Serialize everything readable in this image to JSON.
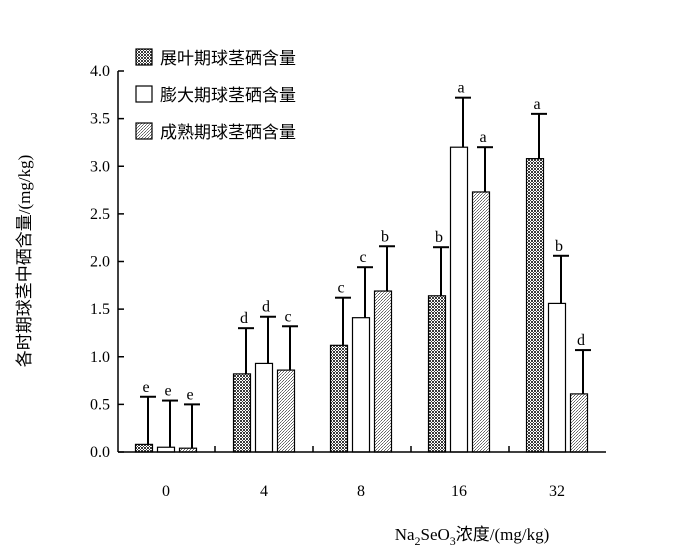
{
  "chart_data": {
    "type": "bar",
    "categories": [
      "0",
      "4",
      "8",
      "16",
      "32"
    ],
    "series": [
      {
        "name": "展叶期球茎硒含量",
        "values": [
          0.08,
          0.82,
          1.12,
          1.64,
          3.08
        ],
        "errors": [
          0.5,
          0.48,
          0.5,
          0.51,
          0.47
        ],
        "labels": [
          "e",
          "d",
          "c",
          "b",
          "a"
        ]
      },
      {
        "name": "膨大期球茎硒含量",
        "values": [
          0.05,
          0.93,
          1.41,
          3.2,
          1.56
        ],
        "errors": [
          0.49,
          0.49,
          0.53,
          0.52,
          0.5
        ],
        "labels": [
          "e",
          "d",
          "c",
          "a",
          "b"
        ]
      },
      {
        "name": "成熟期球茎硒含量",
        "values": [
          0.04,
          0.86,
          1.69,
          2.73,
          0.61
        ],
        "errors": [
          0.46,
          0.46,
          0.47,
          0.47,
          0.46
        ],
        "labels": [
          "e",
          "c",
          "b",
          "a",
          "d"
        ]
      }
    ],
    "ylabel": "各时期球茎中硒含量/(mg/kg)",
    "xlabel": {
      "pre": "Na",
      "sub1": "2",
      "mid": "SeO",
      "sub2": "3",
      "post": "浓度/(mg/kg)"
    },
    "ylim": [
      0,
      4
    ],
    "yticks": [
      "0.0",
      "0.5",
      "1.0",
      "1.5",
      "2.0",
      "2.5",
      "3.0",
      "3.5",
      "4.0"
    ],
    "grid": false,
    "legend_position": "top-left"
  }
}
